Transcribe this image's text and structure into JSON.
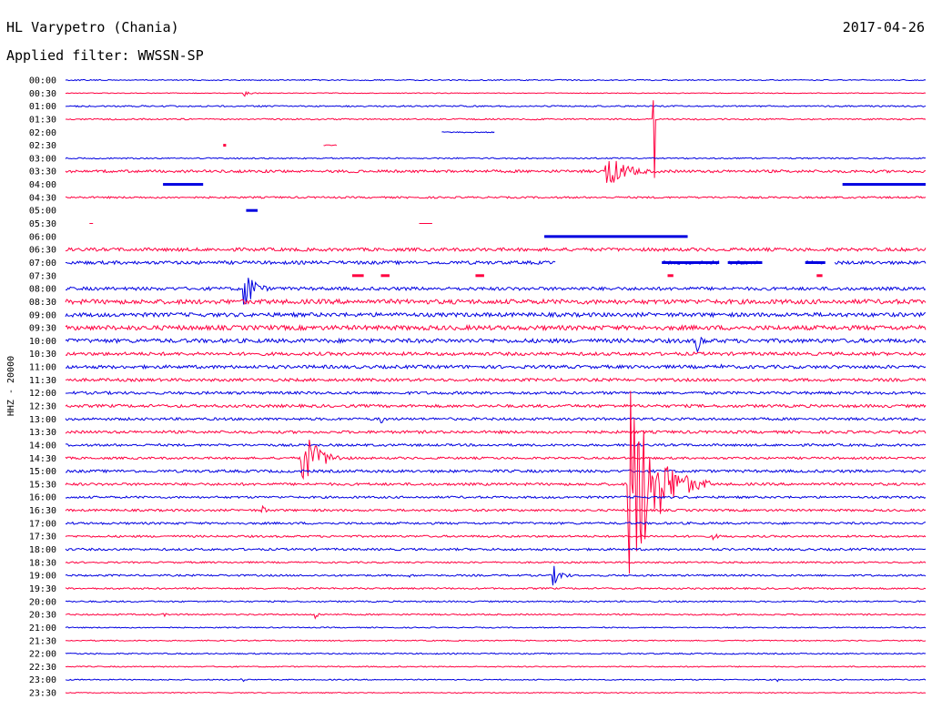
{
  "header": {
    "station": "HL Varypetro (Chania)",
    "date": "2017-04-26",
    "filter_label": "Applied filter: WWSSN-SP"
  },
  "colors": {
    "even_trace": "#0000e0",
    "odd_trace": "#ff0040"
  },
  "chart_data": {
    "type": "helicorder",
    "title": "HL Varypetro (Chania)",
    "subtitle": "Applied filter: WWSSN-SP",
    "ylabel": "HHZ - 20000",
    "row_minutes": 30,
    "row_labels": [
      "00:00",
      "00:30",
      "01:00",
      "01:30",
      "02:00",
      "02:30",
      "03:00",
      "03:30",
      "04:00",
      "04:30",
      "05:00",
      "05:30",
      "06:00",
      "06:30",
      "07:00",
      "07:30",
      "08:00",
      "08:30",
      "09:00",
      "09:30",
      "10:00",
      "10:30",
      "11:00",
      "11:30",
      "12:00",
      "12:30",
      "13:00",
      "13:30",
      "14:00",
      "14:30",
      "15:00",
      "15:30",
      "16:00",
      "16:30",
      "17:00",
      "17:30",
      "18:00",
      "18:30",
      "19:00",
      "19:30",
      "20:00",
      "20:30",
      "21:00",
      "21:30",
      "22:00",
      "22:30",
      "23:00",
      "23:30"
    ],
    "row_noise": [
      0.6,
      0.4,
      0.8,
      0.8,
      0.6,
      0.6,
      0.7,
      1.5,
      0.2,
      1.0,
      0.0,
      0.0,
      0.3,
      1.8,
      1.8,
      0.0,
      1.8,
      2.5,
      2.2,
      2.5,
      2.2,
      1.8,
      1.8,
      1.6,
      1.5,
      1.6,
      1.4,
      1.5,
      1.3,
      1.2,
      1.5,
      1.4,
      1.2,
      1.2,
      1.2,
      1.1,
      1.2,
      0.9,
      1.0,
      0.9,
      0.8,
      0.8,
      0.6,
      0.6,
      0.7,
      0.6,
      0.6,
      0.5
    ],
    "events": [
      {
        "row": 1,
        "minute": 6.2,
        "duration": 0.8,
        "amp": 4
      },
      {
        "row": 3,
        "minute": 20.5,
        "duration": 0.4,
        "amp": 160,
        "spike": true
      },
      {
        "row": 7,
        "minute": 18.8,
        "duration": 2.0,
        "amp": 22
      },
      {
        "row": 16,
        "minute": 6.2,
        "duration": 1.0,
        "amp": 30
      },
      {
        "row": 20,
        "minute": 22.0,
        "duration": 0.6,
        "amp": 16
      },
      {
        "row": 22,
        "minute": 22.8,
        "duration": 0.4,
        "amp": 6
      },
      {
        "row": 26,
        "minute": 11.0,
        "duration": 0.5,
        "amp": 6
      },
      {
        "row": 29,
        "minute": 8.2,
        "duration": 1.6,
        "amp": 38
      },
      {
        "row": 31,
        "minute": 19.6,
        "duration": 2.4,
        "amp": 140
      },
      {
        "row": 33,
        "minute": 6.8,
        "duration": 0.6,
        "amp": 7
      },
      {
        "row": 35,
        "minute": 22.5,
        "duration": 0.8,
        "amp": 5
      },
      {
        "row": 38,
        "minute": 17.0,
        "duration": 0.9,
        "amp": 12
      },
      {
        "row": 38,
        "minute": 12.0,
        "duration": 0.3,
        "amp": 4
      },
      {
        "row": 41,
        "minute": 8.7,
        "duration": 0.3,
        "amp": 8
      },
      {
        "row": 41,
        "minute": 3.4,
        "duration": 0.4,
        "amp": 3
      },
      {
        "row": 46,
        "minute": 6.1,
        "duration": 0.4,
        "amp": 4
      },
      {
        "row": 46,
        "minute": 24.8,
        "duration": 0.2,
        "amp": 4
      }
    ],
    "gaps": [
      {
        "row": 8,
        "from": 0,
        "to": 3.4
      },
      {
        "row": 8,
        "from": 4.8,
        "to": 27.1
      },
      {
        "row": 10,
        "from": 0,
        "to": 6.3
      },
      {
        "row": 10,
        "from": 6.7,
        "to": 30
      },
      {
        "row": 11,
        "from": 0,
        "to": 0.8
      },
      {
        "row": 11,
        "from": 1.0,
        "to": 12.3
      },
      {
        "row": 11,
        "from": 12.8,
        "to": 30
      },
      {
        "row": 12,
        "from": 0,
        "to": 16.7
      },
      {
        "row": 12,
        "from": 21.7,
        "to": 30
      },
      {
        "row": 15,
        "from": 0,
        "to": 10.0
      },
      {
        "row": 15,
        "from": 10.4,
        "to": 11.0
      },
      {
        "row": 15,
        "from": 11.3,
        "to": 14.3
      },
      {
        "row": 15,
        "from": 14.6,
        "to": 21.0
      },
      {
        "row": 15,
        "from": 21.2,
        "to": 26.2
      },
      {
        "row": 15,
        "from": 26.4,
        "to": 30
      },
      {
        "row": 14,
        "from": 17.1,
        "to": 20.8
      },
      {
        "row": 14,
        "from": 22.8,
        "to": 23.1
      },
      {
        "row": 14,
        "from": 24.3,
        "to": 25.8
      },
      {
        "row": 14,
        "from": 26.5,
        "to": 26.8
      },
      {
        "row": 5,
        "from": 0,
        "to": 5.5
      },
      {
        "row": 5,
        "from": 5.5,
        "to": 9.0
      },
      {
        "row": 5,
        "from": 9.5,
        "to": 30
      },
      {
        "row": 4,
        "from": 0,
        "to": 13.1
      },
      {
        "row": 4,
        "from": 15.0,
        "to": 30
      }
    ],
    "blocks": [
      {
        "row": 8,
        "from": 3.4,
        "to": 4.8
      },
      {
        "row": 8,
        "from": 27.1,
        "to": 30
      },
      {
        "row": 10,
        "from": 6.3,
        "to": 6.7
      },
      {
        "row": 12,
        "from": 16.7,
        "to": 21.7
      },
      {
        "row": 5,
        "from": 5.5,
        "to": 5.6
      },
      {
        "row": 15,
        "from": 10.0,
        "to": 10.4
      },
      {
        "row": 15,
        "from": 11.0,
        "to": 11.3
      },
      {
        "row": 15,
        "from": 14.3,
        "to": 14.6
      },
      {
        "row": 15,
        "from": 21.0,
        "to": 21.2
      },
      {
        "row": 15,
        "from": 26.2,
        "to": 26.4
      },
      {
        "row": 14,
        "from": 20.8,
        "to": 22.8
      },
      {
        "row": 14,
        "from": 23.1,
        "to": 24.3
      },
      {
        "row": 14,
        "from": 25.8,
        "to": 26.5
      }
    ]
  }
}
